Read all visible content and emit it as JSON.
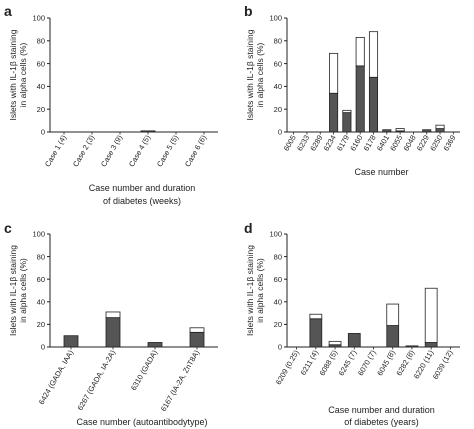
{
  "chart_data": [
    {
      "type": "bar",
      "panel": "a",
      "categories": [
        "Case 1 (4)",
        "Case 2 (3)",
        "Case 3 (9)",
        "Case 4 (5)",
        "Case 5 (5)",
        "Case 6 (6)"
      ],
      "series": [
        {
          "values": [
            0,
            0,
            0,
            1,
            0,
            0
          ],
          "color": "#555555"
        },
        {
          "values": [
            0,
            0,
            0,
            0,
            0,
            0
          ],
          "color": "#ffffff"
        }
      ],
      "ylabel": "Islets with IL-1β staining in alpha cells (%)",
      "xlabel": [
        "Case number and duration",
        "of diabetes (weeks)"
      ],
      "ylim": [
        0,
        100
      ],
      "yticks": [
        0,
        20,
        40,
        60,
        80,
        100
      ],
      "grid": false
    },
    {
      "type": "bar",
      "panel": "b",
      "categories": [
        "6005",
        "6233",
        "6289",
        "6234",
        "6179",
        "6160",
        "6178",
        "6401",
        "6055",
        "6048",
        "6229",
        "6250",
        "6369"
      ],
      "series": [
        {
          "values": [
            0,
            0,
            0,
            34,
            17,
            58,
            48,
            2,
            1,
            0,
            2,
            3,
            0
          ],
          "color": "#555555"
        },
        {
          "values": [
            0,
            0,
            0,
            35,
            2,
            25,
            40,
            0,
            2,
            0,
            0,
            3,
            0
          ],
          "color": "#ffffff"
        }
      ],
      "ylabel": "Islets with IL-1β staining in alpha cells (%)",
      "xlabel": [
        "Case number"
      ],
      "ylim": [
        0,
        100
      ],
      "yticks": [
        0,
        20,
        40,
        60,
        80,
        100
      ],
      "grid": false
    },
    {
      "type": "bar",
      "panel": "c",
      "categories": [
        "6424 (GADA, IAA)",
        "6267 (GADA, IA-2A)",
        "6310 (GADA)",
        "6167 (IA-2A, ZnT8A)"
      ],
      "series": [
        {
          "values": [
            10,
            26,
            4,
            13
          ],
          "color": "#555555"
        },
        {
          "values": [
            0,
            5,
            0,
            4
          ],
          "color": "#ffffff"
        }
      ],
      "ylabel": "Islets with IL-1β staining in alpha cells (%)",
      "xlabel": [
        "Case number (autoantibodytype)"
      ],
      "ylim": [
        0,
        100
      ],
      "yticks": [
        0,
        20,
        40,
        60,
        80,
        100
      ],
      "grid": false
    },
    {
      "type": "bar",
      "panel": "d",
      "categories": [
        "6209 (0.25)",
        "6211 (4)",
        "6088 (5)",
        "6245 (7)",
        "6070 (7)",
        "6045 (8)",
        "6282 (8)",
        "6220 (11)",
        "6039 (12)"
      ],
      "series": [
        {
          "values": [
            0,
            25,
            2,
            12,
            0,
            19,
            1,
            4,
            0
          ],
          "color": "#555555"
        },
        {
          "values": [
            0,
            4,
            3,
            0,
            0,
            19,
            0,
            48,
            0
          ],
          "color": "#ffffff"
        }
      ],
      "ylabel": "Islets with IL-1β staining in alpha cells (%)",
      "xlabel": [
        "Case number and duration",
        "of diabetes (years)"
      ],
      "ylim": [
        0,
        100
      ],
      "yticks": [
        0,
        20,
        40,
        60,
        80,
        100
      ],
      "grid": false
    }
  ]
}
